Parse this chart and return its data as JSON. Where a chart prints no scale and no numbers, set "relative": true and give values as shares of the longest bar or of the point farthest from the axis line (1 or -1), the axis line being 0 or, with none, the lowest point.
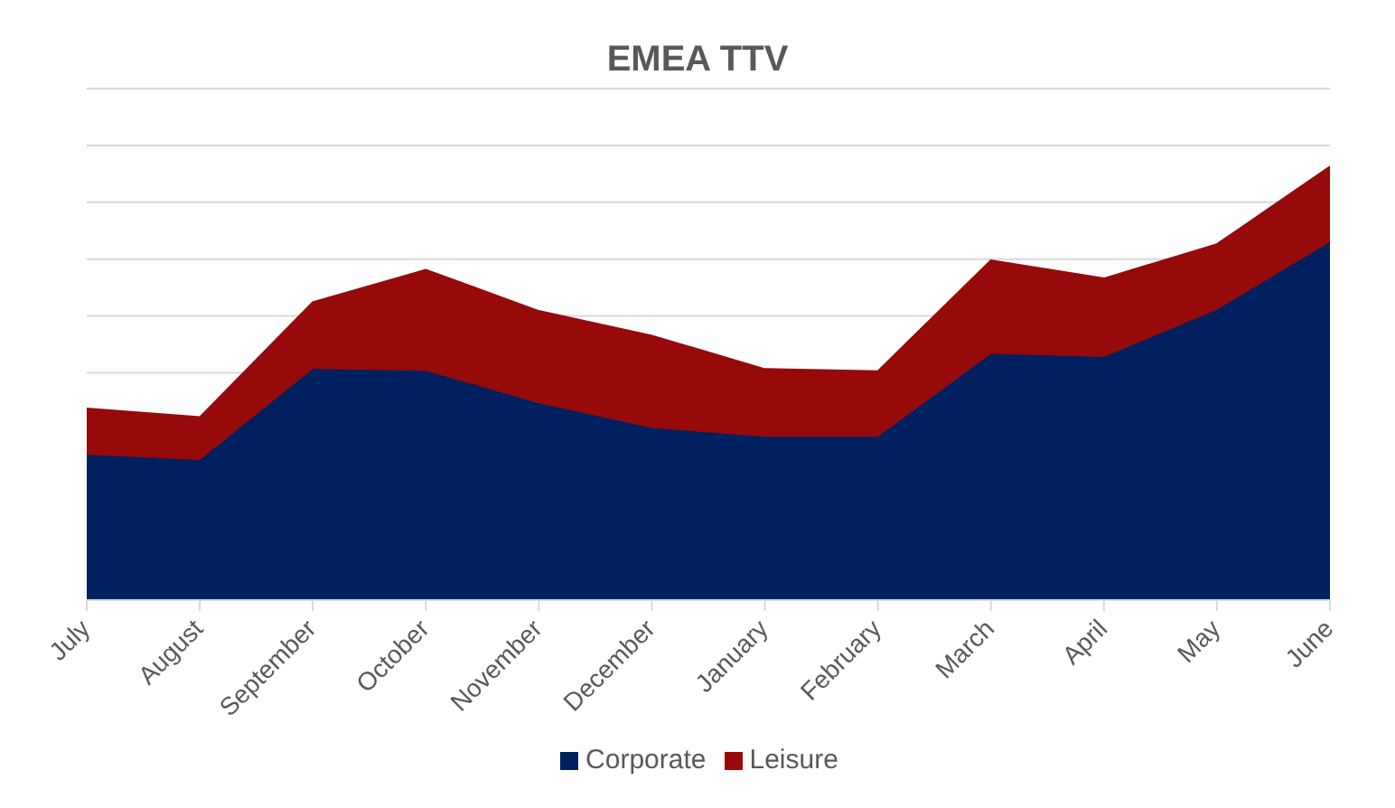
{
  "chart_data": {
    "type": "area",
    "title": "EMEA TTV",
    "relative": true,
    "stacked": true,
    "grid": "y",
    "legend": "bottom",
    "categories": [
      "July",
      "August",
      "September",
      "October",
      "November",
      "December",
      "January",
      "February",
      "March",
      "April",
      "May",
      "June"
    ],
    "series": [
      {
        "name": "Corporate",
        "color": "#002060",
        "values": [
          0.335,
          0.323,
          0.533,
          0.529,
          0.454,
          0.397,
          0.377,
          0.377,
          0.568,
          0.561,
          0.67,
          0.826
        ]
      },
      {
        "name": "Leisure",
        "color": "#960a0a",
        "values": [
          0.107,
          0.099,
          0.154,
          0.233,
          0.213,
          0.213,
          0.156,
          0.151,
          0.216,
          0.181,
          0.151,
          0.174
        ]
      }
    ]
  }
}
